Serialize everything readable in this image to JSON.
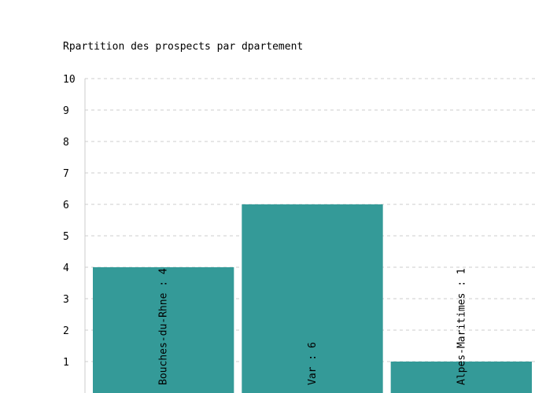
{
  "chart_data": {
    "type": "bar",
    "title": "Rpartition des prospects par dpartement",
    "xlabel": "",
    "ylabel": "",
    "categories": [
      "Bouches-du-Rhne",
      "Var",
      "Alpes-Maritimes"
    ],
    "values": [
      4,
      6,
      1
    ],
    "bar_labels": [
      "Bouches-du-Rhne : 4",
      "Var : 6",
      "Alpes-Maritimes : 1"
    ],
    "ylim": [
      0,
      10
    ],
    "yticks": [
      "1",
      "2",
      "3",
      "4",
      "5",
      "6",
      "7",
      "8",
      "9",
      "10"
    ],
    "grid": true,
    "legend": "none",
    "bar_color": "#349a98",
    "grid_color": "#cccccc",
    "axis_color": "#cccccc"
  }
}
